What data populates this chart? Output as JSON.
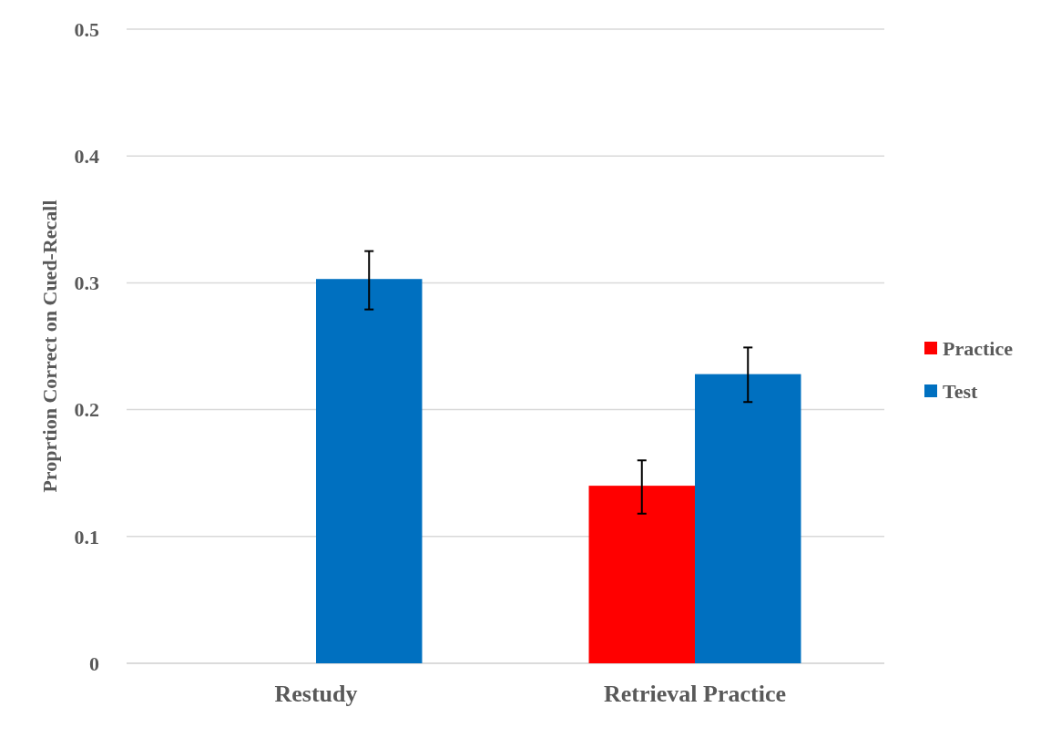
{
  "chart_data": {
    "type": "bar",
    "ylabel": "Proprtion Correct on Cued-Recall",
    "categories": [
      "Restudy",
      "Retrieval Practice"
    ],
    "series": [
      {
        "name": "Practice",
        "color": "#ff0000",
        "values": [
          null,
          0.14
        ],
        "errors": [
          null,
          [
            0.118,
            0.16
          ]
        ]
      },
      {
        "name": "Test",
        "color": "#0070c0",
        "values": [
          0.303,
          0.228
        ],
        "errors": [
          [
            0.279,
            0.325
          ],
          [
            0.206,
            0.249
          ]
        ]
      }
    ],
    "ylim": [
      0,
      0.5
    ],
    "yticks": [
      {
        "value": 0,
        "label": "0"
      },
      0.1,
      0.2,
      0.3,
      0.4,
      0.5
    ],
    "grid": "y",
    "legend": "right"
  }
}
